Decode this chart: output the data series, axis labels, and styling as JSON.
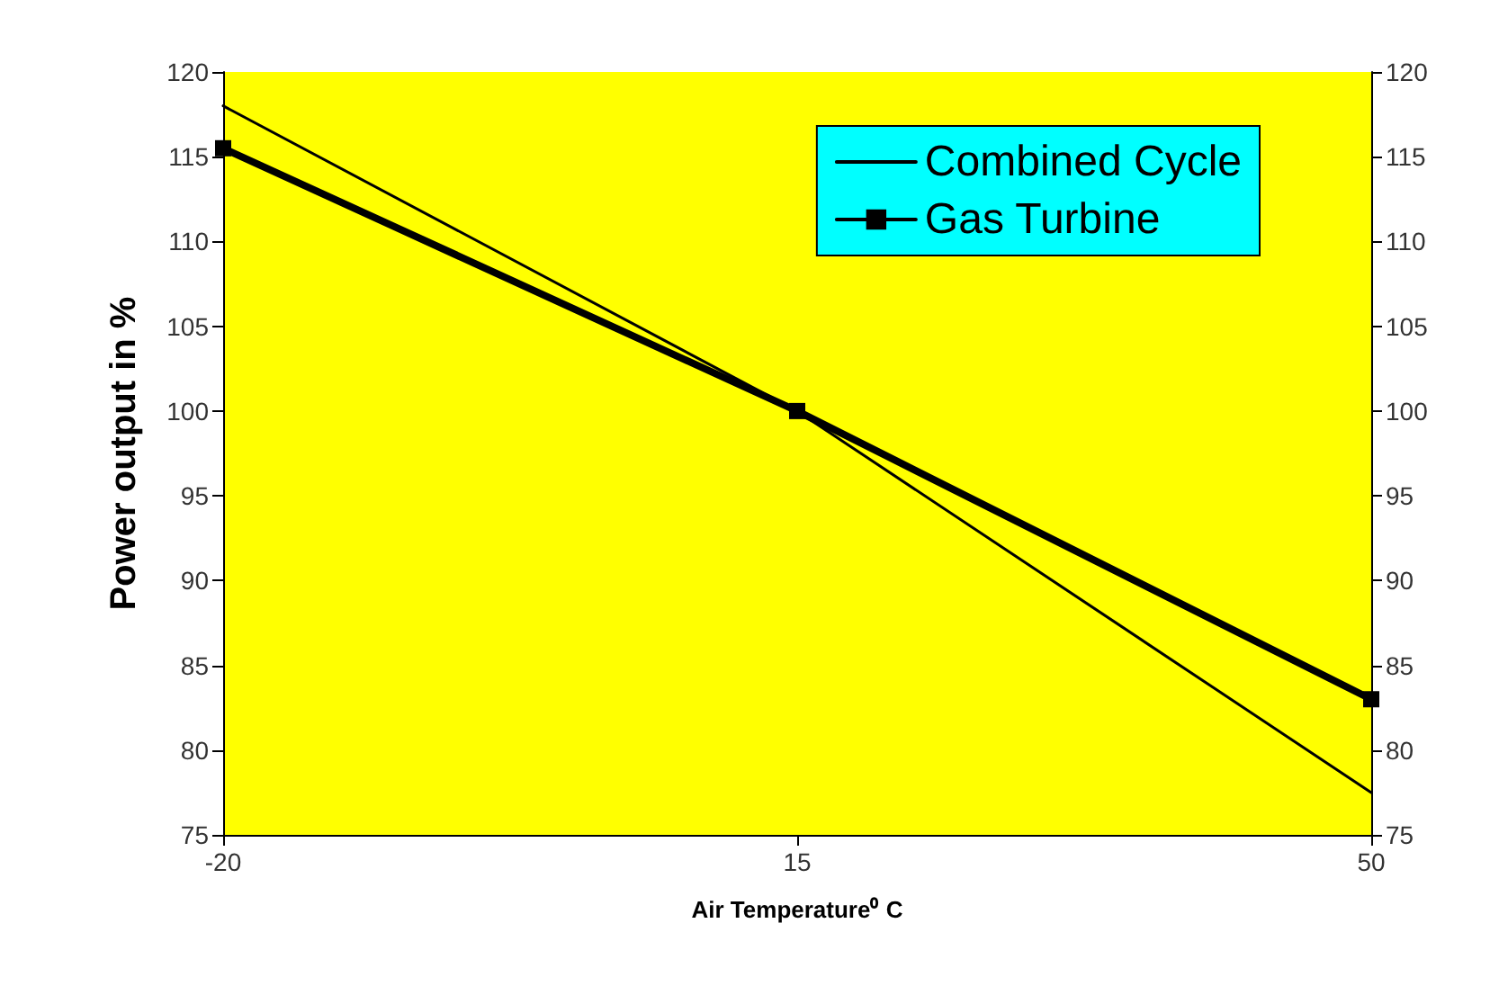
{
  "chart_data": {
    "type": "line",
    "xlabel": "Air Temperature⁰ C",
    "ylabel": "Power output in %",
    "x": [
      -20,
      15,
      50
    ],
    "series": [
      {
        "name": "Combined Cycle",
        "color": "#000000",
        "values": [
          118,
          100,
          77.5
        ],
        "marker": "none"
      },
      {
        "name": "Gas Turbine",
        "color": "#000000",
        "values": [
          115.5,
          100,
          83
        ],
        "marker": "square"
      }
    ],
    "xlim": [
      -20,
      50
    ],
    "xticks": [
      -20,
      15,
      50
    ],
    "ylim": [
      75,
      120
    ],
    "yticks": [
      75,
      80,
      85,
      90,
      95,
      100,
      105,
      110,
      115,
      120
    ],
    "y2lim": [
      75,
      120
    ],
    "y2ticks": [
      75,
      80,
      85,
      90,
      95,
      100,
      105,
      110,
      115,
      120
    ],
    "grid": false,
    "legend": "top right",
    "line_style": "solid"
  }
}
